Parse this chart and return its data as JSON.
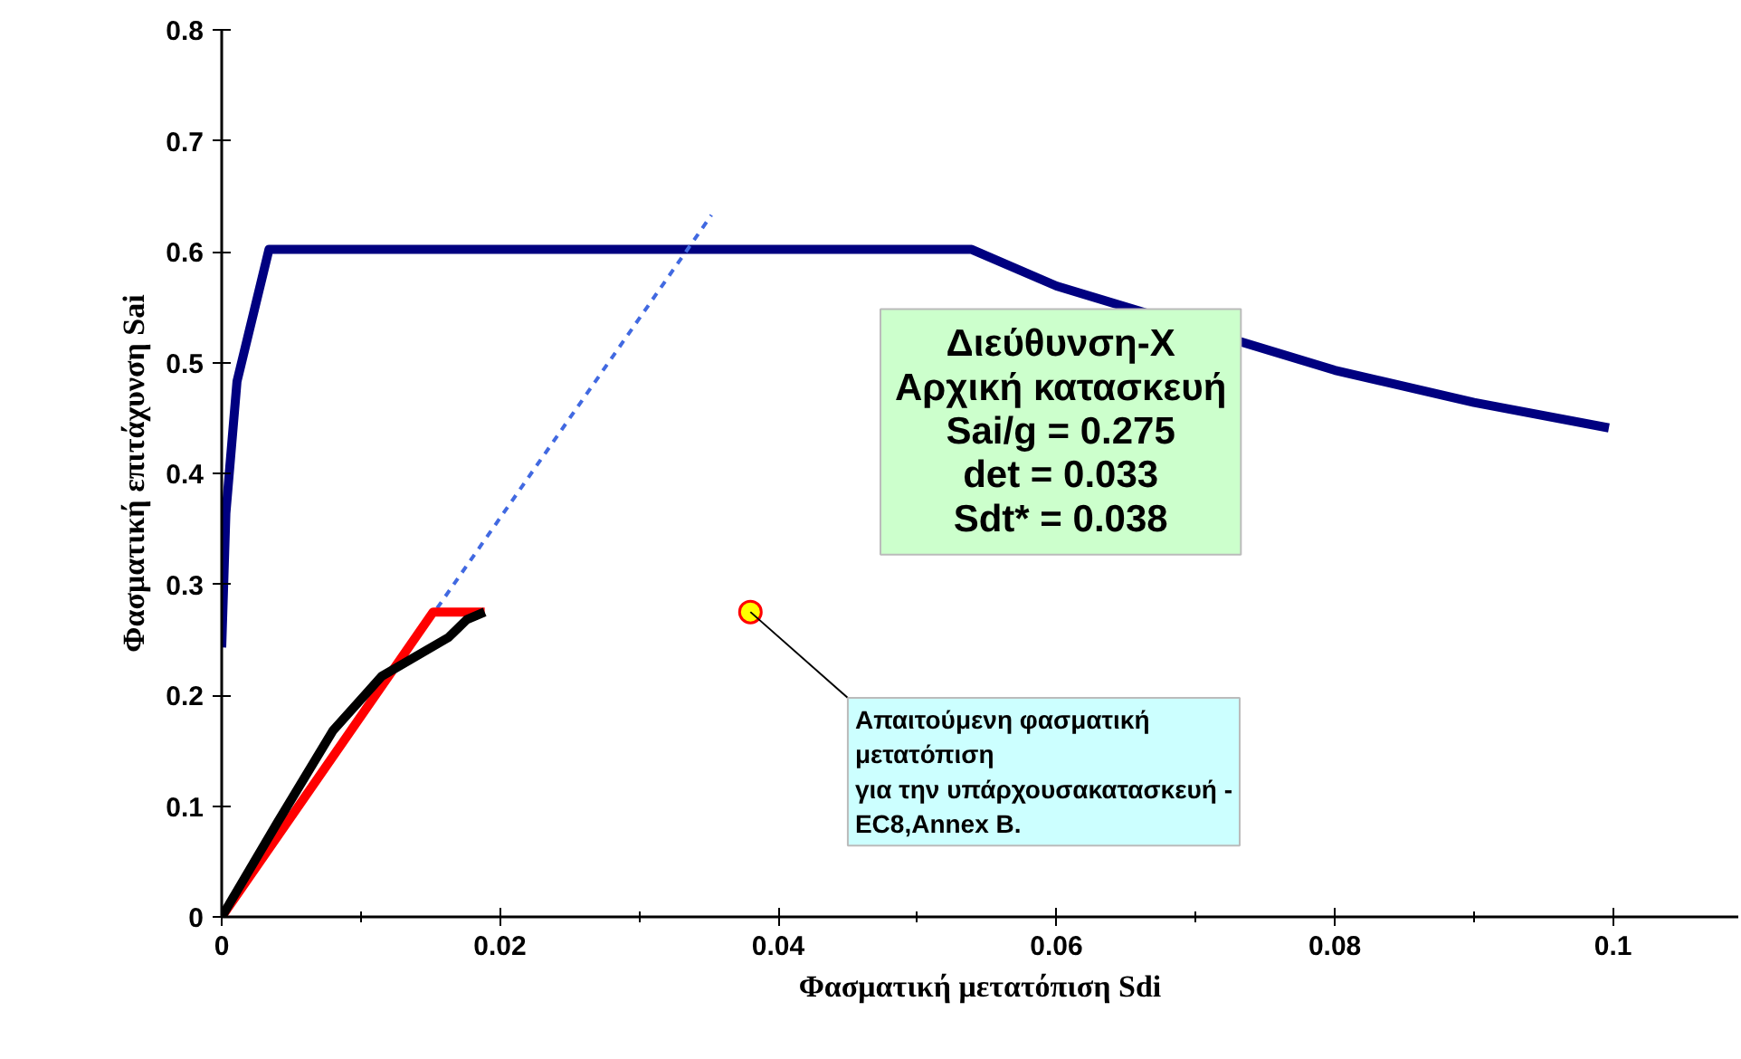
{
  "chart_data": {
    "type": "line",
    "xlabel": "Φασματική μετατόπιση Sdi",
    "ylabel": "Φασματική επιτάχυνση Sai",
    "xlim": [
      0,
      0.109
    ],
    "ylim": [
      0,
      0.8
    ],
    "xticks": [
      0,
      {
        "value": 0.01,
        "label": null
      },
      0.02,
      {
        "value": 0.03,
        "label": null
      },
      0.04,
      {
        "value": 0.05,
        "label": null
      },
      0.06,
      {
        "value": 0.07,
        "label": null
      },
      0.08,
      {
        "value": 0.09,
        "label": null
      },
      0.1
    ],
    "yticks": [
      0,
      0.1,
      0.2,
      0.3,
      0.4,
      0.5,
      0.6,
      0.7,
      0.8
    ],
    "grid": false,
    "marker": "none",
    "series": [
      {
        "color": "#000080",
        "x": [
          0,
          0.0003,
          0.0011,
          0.0034,
          0.0539,
          0.06,
          0.08,
          0.09,
          0.0997
        ],
        "values": [
          0.243,
          0.364,
          0.483,
          0.602,
          0.602,
          0.569,
          0.493,
          0.464,
          0.441
        ]
      },
      {
        "color": "#4169e1",
        "line_style": "dashed",
        "x": [
          0,
          0.0352
        ],
        "values": [
          0,
          0.633
        ]
      },
      {
        "color": "#ff0000",
        "x": [
          0,
          0.0152,
          0.0189
        ],
        "values": [
          0,
          0.275,
          0.275
        ]
      },
      {
        "color": "#000000",
        "x": [
          0,
          0.004,
          0.008,
          0.0115,
          0.0163,
          0.0176,
          0.0189
        ],
        "values": [
          0,
          0.085,
          0.168,
          0.217,
          0.252,
          0.268,
          0.275
        ]
      },
      {
        "type": "scatter",
        "marker": "circle",
        "color": "#ffff00",
        "x": [
          0.038
        ],
        "values": [
          0.275
        ]
      }
    ],
    "annotations": [
      "Διεύθυνση-Χ\nΑρχική κατασκευή\nSai/g = 0.275\ndet = 0.033\nSdt* = 0.038",
      {
        "text": "Απαιτούμενη φασματική\nμετατόπιση\nγια την υπάρχουσακατασκευή -\nEC8,Annex B.",
        "x": 0.038,
        "y": 0.275
      }
    ]
  }
}
